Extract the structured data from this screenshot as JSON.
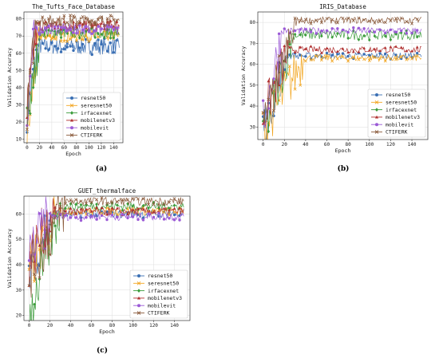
{
  "legend_labels": [
    "resnet50",
    "seresnet50",
    "irfacexnet",
    "mobilenetv3",
    "mobilevit",
    "CTIFERK"
  ],
  "series_colors": [
    "#3a6fb4",
    "#f2a51f",
    "#3a9b3a",
    "#b03030",
    "#9b5ad6",
    "#8b5b3c"
  ],
  "marker_shapes": [
    "circle",
    "x",
    "diamond",
    "triangle",
    "circle",
    "x"
  ],
  "chart_data": [
    {
      "type": "line",
      "id": "a",
      "title": "The_Tufts_Face_Database",
      "xlabel": "Epoch",
      "ylabel": "Validation Accuracy",
      "caption": "(a)",
      "xlim": [
        -5,
        155
      ],
      "ylim": [
        8,
        84
      ],
      "xticks": [
        0,
        20,
        40,
        60,
        80,
        100,
        120,
        140
      ],
      "yticks": [
        10,
        20,
        30,
        40,
        50,
        60,
        70,
        80
      ],
      "legend": "bottom-right",
      "grid": true,
      "series": [
        {
          "name": "resnet50",
          "start": 25,
          "rise": 18,
          "end": 64,
          "noise": 3
        },
        {
          "name": "seresnet50",
          "start": 12,
          "rise": 20,
          "end": 70,
          "noise": 2
        },
        {
          "name": "irfacexnet",
          "start": 20,
          "rise": 22,
          "end": 72,
          "noise": 2
        },
        {
          "name": "mobilenetv3",
          "start": 28,
          "rise": 16,
          "end": 76,
          "noise": 2
        },
        {
          "name": "mobilevit",
          "start": 22,
          "rise": 12,
          "end": 74,
          "noise": 2
        },
        {
          "name": "CTIFERK",
          "start": 26,
          "rise": 14,
          "end": 79,
          "noise": 2
        }
      ]
    },
    {
      "type": "line",
      "id": "b",
      "title": "IRIS_Database",
      "xlabel": "Epoch",
      "ylabel": "Validation Accuracy",
      "caption": "(b)",
      "xlim": [
        -5,
        155
      ],
      "ylim": [
        24,
        85
      ],
      "xticks": [
        0,
        20,
        40,
        60,
        80,
        100,
        120,
        140
      ],
      "yticks": [
        30,
        40,
        50,
        60,
        70,
        80
      ],
      "legend": "bottom-right",
      "grid": true,
      "series": [
        {
          "name": "resnet50",
          "start": 30,
          "rise": 22,
          "end": 64,
          "noise": 1
        },
        {
          "name": "seresnet50",
          "start": 28,
          "rise": 38,
          "end": 63,
          "noise": 1
        },
        {
          "name": "irfacexnet",
          "start": 26,
          "rise": 28,
          "end": 74,
          "noise": 1.5
        },
        {
          "name": "mobilenetv3",
          "start": 35,
          "rise": 24,
          "end": 67,
          "noise": 1
        },
        {
          "name": "mobilevit",
          "start": 32,
          "rise": 18,
          "end": 76,
          "noise": 1
        },
        {
          "name": "CTIFERK",
          "start": 30,
          "rise": 32,
          "end": 81,
          "noise": 1
        }
      ]
    },
    {
      "type": "line",
      "id": "c",
      "title": "GUET_thermalface",
      "xlabel": "Epoch",
      "ylabel": "Validation Accuracy",
      "caption": "(c)",
      "xlim": [
        -5,
        155
      ],
      "ylim": [
        18,
        67
      ],
      "xticks": [
        0,
        20,
        40,
        60,
        80,
        100,
        120,
        140
      ],
      "yticks": [
        20,
        30,
        40,
        50,
        60
      ],
      "legend": "bottom-right",
      "grid": true,
      "series": [
        {
          "name": "resnet50",
          "start": 40,
          "rise": 22,
          "end": 60,
          "noise": 1
        },
        {
          "name": "seresnet50",
          "start": 38,
          "rise": 26,
          "end": 61,
          "noise": 1
        },
        {
          "name": "irfacexnet",
          "start": 20,
          "rise": 30,
          "end": 63,
          "noise": 1
        },
        {
          "name": "mobilenetv3",
          "start": 42,
          "rise": 24,
          "end": 61,
          "noise": 1
        },
        {
          "name": "mobilevit",
          "start": 44,
          "rise": 20,
          "end": 59,
          "noise": 1
        },
        {
          "name": "CTIFERK",
          "start": 36,
          "rise": 36,
          "end": 65,
          "noise": 1
        }
      ]
    }
  ]
}
